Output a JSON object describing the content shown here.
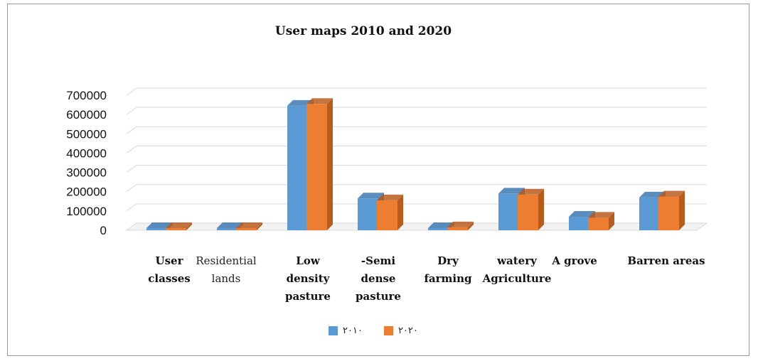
{
  "chart_data": {
    "type": "bar",
    "title": "User maps 2010 and 2020",
    "categories": [
      [
        "User",
        "classes"
      ],
      [
        "Residential",
        "lands"
      ],
      [
        "Low",
        "density",
        "pasture"
      ],
      [
        "-Semi",
        "dense",
        "pasture"
      ],
      [
        "Dry",
        "farming"
      ],
      [
        "watery",
        "Agriculture"
      ],
      [
        "A grove"
      ],
      [
        "Barren areas"
      ]
    ],
    "series": [
      {
        "name": "٢٠١٠",
        "color": "#5b9bd5",
        "side_color": "#3d78b3",
        "values": [
          0,
          2000,
          645000,
          165000,
          5000,
          190000,
          70000,
          170000
        ]
      },
      {
        "name": "٢٠٢٠",
        "color": "#ed7d31",
        "side_color": "#b85c1e",
        "values": [
          0,
          3000,
          655000,
          155000,
          15000,
          185000,
          65000,
          175000
        ]
      }
    ],
    "yticks": [
      "0",
      "100000",
      "200000",
      "300000",
      "400000",
      "500000",
      "600000",
      "700000"
    ],
    "ylim": [
      0,
      700000
    ],
    "grid": true,
    "legend": "bottom",
    "xlabel": "",
    "ylabel": ""
  }
}
